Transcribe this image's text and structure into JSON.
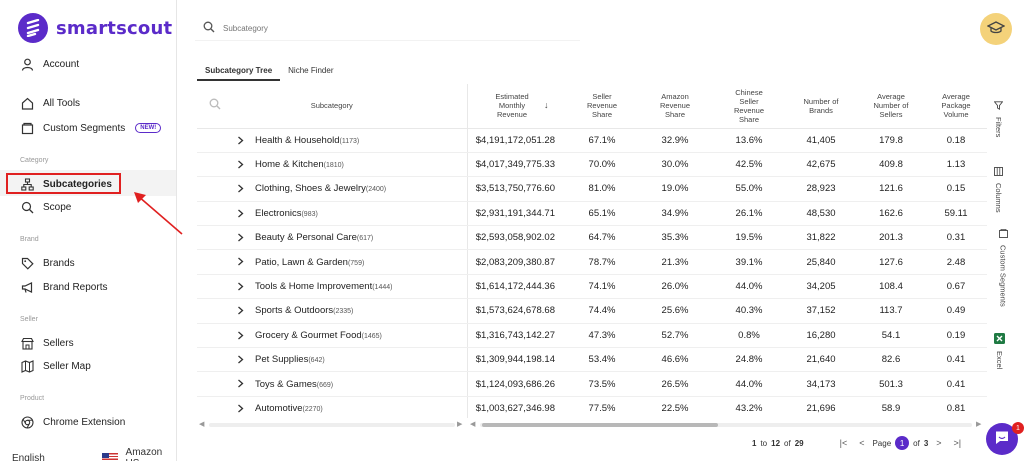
{
  "app": {
    "brand": "smartscout"
  },
  "sidebar": {
    "account": "Account",
    "all_tools": "All Tools",
    "custom_segments": "Custom Segments",
    "new_badge": "NEW!",
    "section_category": "Category",
    "subcategories": "Subcategories",
    "scope": "Scope",
    "section_brand": "Brand",
    "brands": "Brands",
    "brand_reports": "Brand Reports",
    "section_seller": "Seller",
    "sellers": "Sellers",
    "seller_map": "Seller Map",
    "section_product": "Product",
    "chrome_extension": "Chrome Extension",
    "language": "English",
    "marketplace": "Amazon US"
  },
  "search": {
    "placeholder": "Subcategory"
  },
  "tabs": [
    {
      "label": "Subcategory Tree",
      "active": true
    },
    {
      "label": "Niche Finder",
      "active": false
    }
  ],
  "table": {
    "columns": [
      "Subcategory",
      "Estimated Monthly Revenue",
      "Seller Revenue Share",
      "Amazon Revenue Share",
      "Chinese Seller Revenue Share",
      "Number of Brands",
      "Average Number of Sellers",
      "Average Package Volume"
    ],
    "rows": [
      {
        "name": "Health & Household",
        "count": "(1173)",
        "revenue": "$4,191,172,051.28",
        "seller": "67.1%",
        "amazon": "32.9%",
        "chinese": "13.6%",
        "brands": "41,405",
        "sellers": "179.8",
        "volume": "0.18"
      },
      {
        "name": "Home & Kitchen",
        "count": "(1810)",
        "revenue": "$4,017,349,775.33",
        "seller": "70.0%",
        "amazon": "30.0%",
        "chinese": "42.5%",
        "brands": "42,675",
        "sellers": "409.8",
        "volume": "1.13"
      },
      {
        "name": "Clothing, Shoes & Jewelry",
        "count": "(2400)",
        "revenue": "$3,513,750,776.60",
        "seller": "81.0%",
        "amazon": "19.0%",
        "chinese": "55.0%",
        "brands": "28,923",
        "sellers": "121.6",
        "volume": "0.15"
      },
      {
        "name": "Electronics",
        "count": "(983)",
        "revenue": "$2,931,191,344.71",
        "seller": "65.1%",
        "amazon": "34.9%",
        "chinese": "26.1%",
        "brands": "48,530",
        "sellers": "162.6",
        "volume": "59.11"
      },
      {
        "name": "Beauty & Personal Care",
        "count": "(617)",
        "revenue": "$2,593,058,902.02",
        "seller": "64.7%",
        "amazon": "35.3%",
        "chinese": "19.5%",
        "brands": "31,822",
        "sellers": "201.3",
        "volume": "0.31"
      },
      {
        "name": "Patio, Lawn & Garden",
        "count": "(759)",
        "revenue": "$2,083,209,380.87",
        "seller": "78.7%",
        "amazon": "21.3%",
        "chinese": "39.1%",
        "brands": "25,840",
        "sellers": "127.6",
        "volume": "2.48"
      },
      {
        "name": "Tools & Home Improvement",
        "count": "(1444)",
        "revenue": "$1,614,172,444.36",
        "seller": "74.1%",
        "amazon": "26.0%",
        "chinese": "44.0%",
        "brands": "34,205",
        "sellers": "108.4",
        "volume": "0.67"
      },
      {
        "name": "Sports & Outdoors",
        "count": "(2335)",
        "revenue": "$1,573,624,678.68",
        "seller": "74.4%",
        "amazon": "25.6%",
        "chinese": "40.3%",
        "brands": "37,152",
        "sellers": "113.7",
        "volume": "0.49"
      },
      {
        "name": "Grocery & Gourmet Food",
        "count": "(1465)",
        "revenue": "$1,316,743,142.27",
        "seller": "47.3%",
        "amazon": "52.7%",
        "chinese": "0.8%",
        "brands": "16,280",
        "sellers": "54.1",
        "volume": "0.19"
      },
      {
        "name": "Pet Supplies",
        "count": "(642)",
        "revenue": "$1,309,944,198.14",
        "seller": "53.4%",
        "amazon": "46.6%",
        "chinese": "24.8%",
        "brands": "21,640",
        "sellers": "82.6",
        "volume": "0.41"
      },
      {
        "name": "Toys & Games",
        "count": "(669)",
        "revenue": "$1,124,093,686.26",
        "seller": "73.5%",
        "amazon": "26.5%",
        "chinese": "44.0%",
        "brands": "34,173",
        "sellers": "501.3",
        "volume": "0.41"
      },
      {
        "name": "Automotive",
        "count": "(2270)",
        "revenue": "$1,003,627,346.98",
        "seller": "77.5%",
        "amazon": "22.5%",
        "chinese": "43.2%",
        "brands": "21,696",
        "sellers": "58.9",
        "volume": "0.81"
      }
    ]
  },
  "rail": {
    "filters": "Filters",
    "columns": "Columns",
    "custom_segments": "Custom Segments",
    "excel": "Excel"
  },
  "pager": {
    "from": "1",
    "to_label": "to",
    "to": "12",
    "of_label": "of",
    "total": "29",
    "page_label": "Page",
    "page": "1",
    "of2": "of",
    "pages": "3"
  },
  "chat": {
    "badge": "1"
  }
}
